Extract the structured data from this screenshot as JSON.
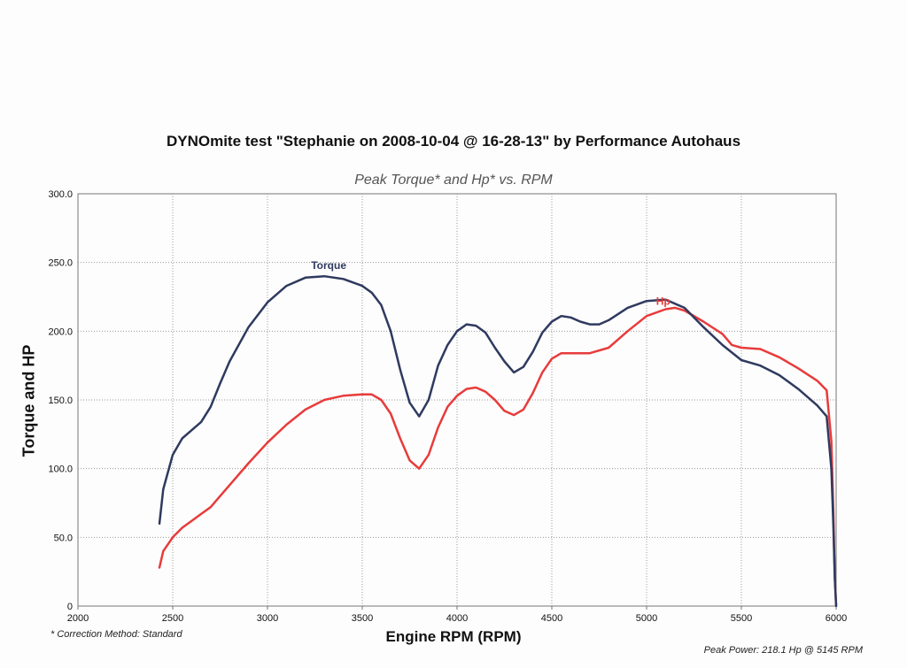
{
  "chart_data": {
    "type": "line",
    "title": "DYNOmite test \"Stephanie on 2008-10-04 @ 16-28-13\" by Performance Autohaus",
    "subtitle": "Peak Torque* and Hp* vs. RPM",
    "xlabel": "Engine RPM (RPM)",
    "ylabel": "Torque and HP",
    "xlim": [
      2000,
      6000
    ],
    "ylim": [
      0,
      300
    ],
    "grid": true,
    "x_ticks": [
      "2000",
      "2500",
      "3000",
      "3500",
      "4000",
      "4500",
      "5000",
      "5500",
      "6000"
    ],
    "y_ticks": [
      "0",
      "50.0",
      "100.0",
      "150.0",
      "200.0",
      "250.0",
      "300.0"
    ],
    "series": [
      {
        "name": "Torque",
        "color": "#2f3a5f",
        "points": [
          [
            2430,
            60
          ],
          [
            2450,
            85
          ],
          [
            2500,
            110
          ],
          [
            2550,
            122
          ],
          [
            2600,
            128
          ],
          [
            2650,
            134
          ],
          [
            2700,
            145
          ],
          [
            2750,
            162
          ],
          [
            2800,
            178
          ],
          [
            2900,
            203
          ],
          [
            3000,
            221
          ],
          [
            3100,
            233
          ],
          [
            3200,
            239
          ],
          [
            3300,
            240
          ],
          [
            3400,
            238
          ],
          [
            3500,
            233
          ],
          [
            3550,
            228
          ],
          [
            3600,
            219
          ],
          [
            3650,
            200
          ],
          [
            3700,
            172
          ],
          [
            3750,
            148
          ],
          [
            3800,
            138
          ],
          [
            3850,
            150
          ],
          [
            3900,
            175
          ],
          [
            3950,
            190
          ],
          [
            4000,
            200
          ],
          [
            4050,
            205
          ],
          [
            4100,
            204
          ],
          [
            4150,
            199
          ],
          [
            4200,
            188
          ],
          [
            4250,
            178
          ],
          [
            4300,
            170
          ],
          [
            4350,
            174
          ],
          [
            4400,
            185
          ],
          [
            4450,
            199
          ],
          [
            4500,
            207
          ],
          [
            4550,
            211
          ],
          [
            4600,
            210
          ],
          [
            4650,
            207
          ],
          [
            4700,
            205
          ],
          [
            4750,
            205
          ],
          [
            4800,
            208
          ],
          [
            4900,
            217
          ],
          [
            5000,
            222
          ],
          [
            5100,
            223
          ],
          [
            5200,
            217
          ],
          [
            5300,
            203
          ],
          [
            5400,
            190
          ],
          [
            5500,
            179
          ],
          [
            5600,
            175
          ],
          [
            5700,
            168
          ],
          [
            5800,
            158
          ],
          [
            5900,
            146
          ],
          [
            5950,
            138
          ],
          [
            5975,
            100
          ],
          [
            5985,
            60
          ],
          [
            5993,
            20
          ],
          [
            6000,
            0
          ]
        ]
      },
      {
        "name": "Hp",
        "color": "#e83b3b",
        "points": [
          [
            2430,
            28
          ],
          [
            2450,
            40
          ],
          [
            2500,
            50
          ],
          [
            2550,
            57
          ],
          [
            2600,
            62
          ],
          [
            2650,
            67
          ],
          [
            2700,
            72
          ],
          [
            2750,
            80
          ],
          [
            2800,
            88
          ],
          [
            2900,
            104
          ],
          [
            3000,
            119
          ],
          [
            3100,
            132
          ],
          [
            3200,
            143
          ],
          [
            3300,
            150
          ],
          [
            3400,
            153
          ],
          [
            3500,
            154
          ],
          [
            3550,
            154
          ],
          [
            3600,
            150
          ],
          [
            3650,
            140
          ],
          [
            3700,
            122
          ],
          [
            3750,
            106
          ],
          [
            3800,
            100
          ],
          [
            3850,
            110
          ],
          [
            3900,
            130
          ],
          [
            3950,
            145
          ],
          [
            4000,
            153
          ],
          [
            4050,
            158
          ],
          [
            4100,
            159
          ],
          [
            4150,
            156
          ],
          [
            4200,
            150
          ],
          [
            4250,
            142
          ],
          [
            4300,
            139
          ],
          [
            4350,
            143
          ],
          [
            4400,
            155
          ],
          [
            4450,
            170
          ],
          [
            4500,
            180
          ],
          [
            4550,
            184
          ],
          [
            4600,
            184
          ],
          [
            4700,
            184
          ],
          [
            4800,
            188
          ],
          [
            4900,
            200
          ],
          [
            5000,
            211
          ],
          [
            5100,
            216
          ],
          [
            5150,
            217
          ],
          [
            5200,
            215
          ],
          [
            5300,
            207
          ],
          [
            5400,
            198
          ],
          [
            5450,
            190
          ],
          [
            5500,
            188
          ],
          [
            5600,
            187
          ],
          [
            5700,
            181
          ],
          [
            5800,
            173
          ],
          [
            5900,
            164
          ],
          [
            5950,
            157
          ],
          [
            5975,
            120
          ],
          [
            5985,
            70
          ],
          [
            5993,
            20
          ],
          [
            6000,
            0
          ]
        ]
      }
    ]
  },
  "text": {
    "title": "DYNOmite test \"Stephanie on 2008-10-04 @ 16-28-13\" by Performance Autohaus",
    "subtitle": "Peak Torque* and Hp* vs. RPM",
    "ylabel": "Torque and HP",
    "xlabel": "Engine RPM (RPM)",
    "correction_note": "* Correction Method: Standard",
    "peak_power": "Peak Power: 218.1 Hp @ 5145 RPM",
    "torque_label": "Torque",
    "hp_label": "Hp"
  },
  "colors": {
    "grid": "#9a9a9a",
    "axis": "#777777",
    "torque": "#2f3a5f",
    "hp": "#e83b3b"
  }
}
